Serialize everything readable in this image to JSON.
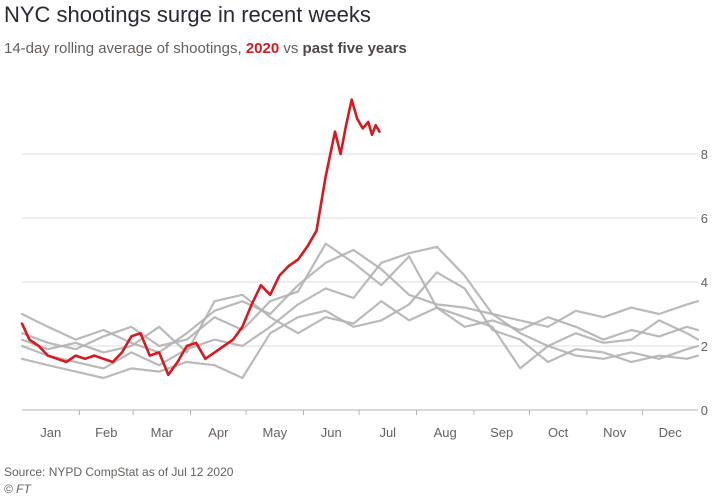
{
  "header": {
    "title": "NYC shootings surge in recent weeks",
    "subtitle_prefix": "14-day rolling average of shootings, ",
    "subtitle_highlight": "2020",
    "subtitle_mid": " vs ",
    "subtitle_compare": "past five years"
  },
  "footer": {
    "source": "Source: NYPD CompStat as of Jul 12 2020",
    "credit": "© FT"
  },
  "colors": {
    "highlight": "#d71920",
    "comparison": "#b3b3b3",
    "grid": "#e0dcd8",
    "axis_text": "#66605c"
  },
  "chart_data": {
    "type": "line",
    "title": "NYC shootings surge in recent weeks",
    "subtitle": "14-day rolling average of shootings, 2020 vs past five years",
    "x_unit": "day of year",
    "xlim": [
      1,
      366
    ],
    "ylim": [
      0,
      10
    ],
    "y_ticks": [
      0,
      2,
      4,
      6,
      8
    ],
    "x_tick_labels": [
      {
        "label": "Jan",
        "day": 1
      },
      {
        "label": "Feb",
        "day": 32
      },
      {
        "label": "Mar",
        "day": 61
      },
      {
        "label": "Apr",
        "day": 92
      },
      {
        "label": "May",
        "day": 122
      },
      {
        "label": "Jun",
        "day": 153
      },
      {
        "label": "Jul",
        "day": 183
      },
      {
        "label": "Aug",
        "day": 214
      },
      {
        "label": "Sep",
        "day": 245
      },
      {
        "label": "Oct",
        "day": 275
      },
      {
        "label": "Nov",
        "day": 306
      },
      {
        "label": "Dec",
        "day": 336
      }
    ],
    "grid": true,
    "y_axis_side": "right",
    "legend": "none (series identified in subtitle)",
    "series": [
      {
        "name": "2020",
        "x": [
          1,
          5,
          10,
          15,
          20,
          25,
          30,
          35,
          40,
          45,
          50,
          55,
          60,
          65,
          70,
          75,
          80,
          85,
          90,
          95,
          100,
          105,
          110,
          115,
          120,
          125,
          130,
          135,
          140,
          145,
          150,
          155,
          160,
          165,
          170,
          173,
          176,
          179,
          182,
          185,
          188,
          190,
          192,
          194
        ],
        "y": [
          2.7,
          2.2,
          2.0,
          1.7,
          1.6,
          1.5,
          1.7,
          1.6,
          1.7,
          1.6,
          1.5,
          1.8,
          2.3,
          2.4,
          1.7,
          1.8,
          1.1,
          1.5,
          2.0,
          2.1,
          1.6,
          1.8,
          2.0,
          2.2,
          2.6,
          3.3,
          3.9,
          3.6,
          4.2,
          4.5,
          4.7,
          5.1,
          5.6,
          7.3,
          8.7,
          8.0,
          8.9,
          9.7,
          9.1,
          8.8,
          9.0,
          8.6,
          8.9,
          8.7
        ]
      },
      {
        "x": [
          1,
          15,
          30,
          45,
          60,
          75,
          90,
          105,
          120,
          135,
          150,
          165,
          180,
          195,
          210,
          225,
          240,
          255,
          270,
          285,
          300,
          315,
          330,
          345,
          360,
          366
        ],
        "y": [
          3.0,
          2.6,
          2.2,
          2.5,
          2.1,
          1.8,
          2.4,
          3.1,
          3.4,
          3.0,
          3.9,
          4.6,
          5.0,
          4.4,
          3.6,
          3.3,
          3.2,
          3.0,
          2.8,
          2.6,
          3.1,
          2.9,
          3.2,
          3.0,
          3.3,
          3.4
        ]
      },
      {
        "x": [
          1,
          15,
          30,
          45,
          60,
          75,
          90,
          105,
          120,
          135,
          150,
          165,
          180,
          195,
          210,
          225,
          240,
          255,
          270,
          285,
          300,
          315,
          330,
          345,
          360,
          366
        ],
        "y": [
          2.0,
          1.7,
          1.5,
          1.3,
          1.8,
          1.4,
          1.9,
          2.2,
          2.0,
          2.6,
          3.3,
          3.8,
          3.5,
          4.6,
          4.9,
          5.1,
          4.2,
          3.0,
          2.4,
          2.0,
          1.7,
          1.6,
          1.8,
          1.6,
          1.9,
          2.0
        ]
      },
      {
        "x": [
          1,
          15,
          30,
          45,
          60,
          75,
          90,
          105,
          120,
          135,
          150,
          165,
          180,
          195,
          210,
          225,
          240,
          255,
          270,
          285,
          300,
          315,
          330,
          345,
          360,
          366
        ],
        "y": [
          2.4,
          2.1,
          1.9,
          2.3,
          2.6,
          2.0,
          2.2,
          2.9,
          2.5,
          3.4,
          3.7,
          5.2,
          4.6,
          3.9,
          4.8,
          3.2,
          2.6,
          2.8,
          2.5,
          2.9,
          2.6,
          2.2,
          2.5,
          2.3,
          2.6,
          2.5
        ]
      },
      {
        "x": [
          1,
          15,
          30,
          45,
          60,
          75,
          90,
          105,
          120,
          135,
          150,
          165,
          180,
          195,
          210,
          225,
          240,
          255,
          270,
          285,
          300,
          315,
          330,
          345,
          360,
          366
        ],
        "y": [
          1.6,
          1.4,
          1.2,
          1.0,
          1.3,
          1.2,
          1.5,
          1.4,
          1.0,
          2.4,
          2.9,
          3.1,
          2.6,
          2.8,
          3.3,
          4.3,
          3.8,
          2.5,
          2.2,
          1.5,
          1.9,
          1.8,
          1.5,
          1.7,
          1.6,
          1.7
        ]
      },
      {
        "x": [
          1,
          15,
          30,
          45,
          60,
          75,
          90,
          105,
          120,
          135,
          150,
          165,
          180,
          195,
          210,
          225,
          240,
          255,
          270,
          285,
          300,
          315,
          330,
          345,
          360,
          366
        ],
        "y": [
          2.2,
          1.9,
          2.1,
          1.8,
          2.0,
          2.6,
          1.8,
          3.4,
          3.6,
          2.9,
          2.4,
          2.9,
          2.7,
          3.4,
          2.8,
          3.2,
          2.9,
          2.6,
          1.3,
          2.0,
          2.4,
          2.1,
          2.2,
          2.8,
          2.4,
          2.2
        ]
      }
    ]
  }
}
